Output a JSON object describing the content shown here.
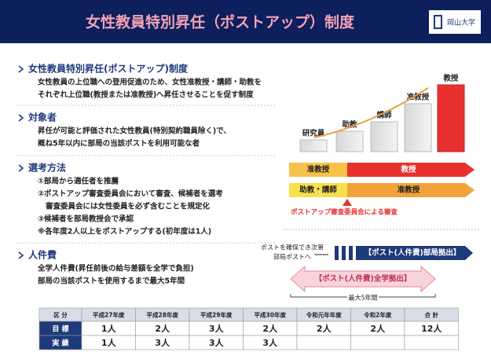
{
  "header": {
    "title": "女性教員特別昇任（ポストアップ）制度",
    "logo": "岡山大学"
  },
  "sections": [
    {
      "heading": "女性教員特別昇任(ポストアップ)制度",
      "lines": [
        "女性教員の上位職への登用促進のため、女性准教授・講師・助教を",
        "それぞれ上位職(教授または准教授)へ昇任させることを促す制度"
      ]
    },
    {
      "heading": "対象者",
      "lines": [
        "昇任が可能と評価された女性教員(特別契約職員除く)で、",
        "概ね5年以内に部局の当該ポストを利用可能な者"
      ]
    },
    {
      "heading": "選考方法",
      "lines": [
        "①部局から適任者を推薦",
        "②ポストアップ審査委員会において審査、候補者を選考",
        "審査委員会には女性委員を必ず含むことを規定化",
        "③候補者を部局教授会で承認",
        "※各年度2人以上をポストアップする(初年度は1人)"
      ]
    },
    {
      "heading": "人件費",
      "lines": [
        "全学人件費(昇任前後の給与差額を全学で負担)",
        "部局の当該ポストを使用するまで最大5年間"
      ]
    }
  ],
  "ranks": [
    "研究員",
    "助教",
    "講師",
    "准教授",
    "教授"
  ],
  "promotion": {
    "rows": [
      {
        "from": "准教授",
        "to": "教授"
      },
      {
        "from": "助教・講師",
        "to": "准教授"
      }
    ],
    "note": "ポストアップ審査委員会による審査"
  },
  "funding": {
    "transfer": [
      "ポストを確保でき次第",
      "部局ポストへ"
    ],
    "department": "【ポスト(人件費)部局拠出】",
    "university": "【ポスト(人件費)全学拠出】",
    "period": "最大5年間"
  },
  "table": {
    "header": [
      "区 分",
      "平成27年度",
      "平成28年度",
      "平成29年度",
      "平成30年度",
      "令和元年年度",
      "令和2年度",
      "合 計"
    ],
    "rows": [
      [
        "目 標",
        "1人",
        "2人",
        "3人",
        "2人",
        "2人",
        "2人",
        "12人"
      ],
      [
        "実 績",
        "1人",
        "3人",
        "3人",
        "3人"
      ]
    ]
  }
}
